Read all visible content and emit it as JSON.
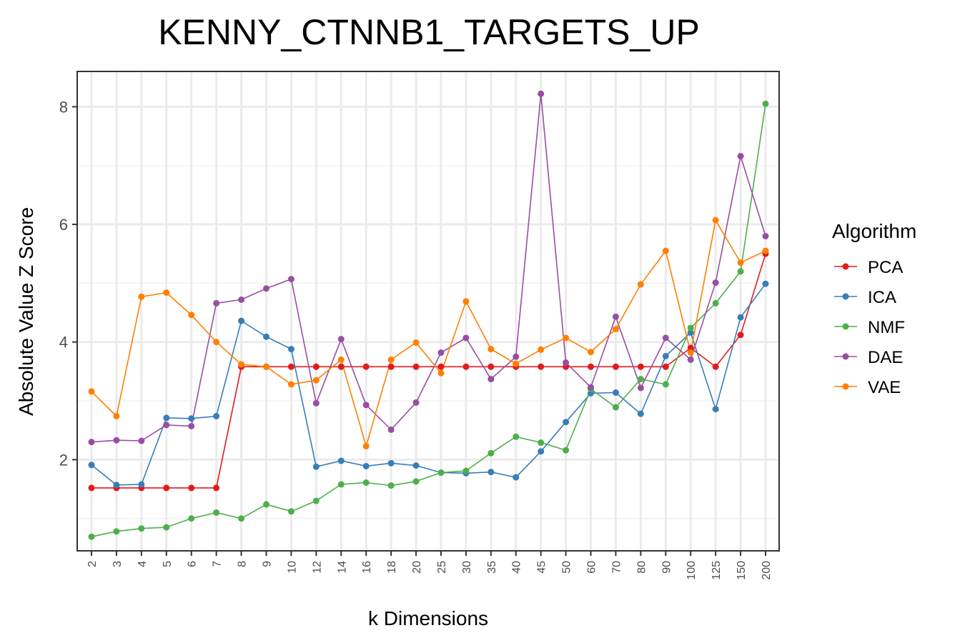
{
  "chart_data": {
    "type": "line",
    "title": "KENNY_CTNNB1_TARGETS_UP",
    "xlabel": "k Dimensions",
    "ylabel": "Absolute Value Z Score",
    "categories": [
      "2",
      "3",
      "4",
      "5",
      "6",
      "7",
      "8",
      "9",
      "10",
      "12",
      "14",
      "16",
      "18",
      "20",
      "25",
      "30",
      "35",
      "40",
      "45",
      "50",
      "60",
      "70",
      "80",
      "90",
      "100",
      "125",
      "150",
      "200"
    ],
    "ylim": [
      0.45,
      8.6
    ],
    "yticks": [
      2,
      4,
      6,
      8
    ],
    "grid": true,
    "legend": {
      "title": "Algorithm",
      "position": "right"
    },
    "series": [
      {
        "name": "PCA",
        "color": "#e41a1c",
        "values": [
          1.52,
          1.52,
          1.52,
          1.52,
          1.52,
          1.52,
          3.58,
          3.58,
          3.58,
          3.58,
          3.58,
          3.58,
          3.58,
          3.58,
          3.58,
          3.58,
          3.58,
          3.58,
          3.58,
          3.58,
          3.58,
          3.58,
          3.58,
          3.58,
          3.9,
          3.58,
          4.12,
          5.5
        ]
      },
      {
        "name": "ICA",
        "color": "#377eb8",
        "values": [
          1.91,
          1.57,
          1.58,
          2.71,
          2.7,
          2.74,
          4.36,
          4.09,
          3.88,
          1.88,
          1.98,
          1.89,
          1.94,
          1.9,
          1.78,
          1.77,
          1.79,
          1.7,
          2.14,
          2.64,
          3.13,
          3.14,
          2.78,
          3.76,
          4.16,
          2.86,
          4.42,
          4.99
        ]
      },
      {
        "name": "NMF",
        "color": "#4daf4a",
        "values": [
          0.69,
          0.78,
          0.83,
          0.85,
          1.0,
          1.1,
          1.0,
          1.24,
          1.12,
          1.3,
          1.58,
          1.61,
          1.56,
          1.63,
          1.78,
          1.81,
          2.11,
          2.39,
          2.29,
          2.16,
          3.2,
          2.89,
          3.37,
          3.28,
          4.24,
          4.66,
          5.2,
          8.05
        ]
      },
      {
        "name": "DAE",
        "color": "#984ea3",
        "values": [
          2.3,
          2.33,
          2.32,
          2.59,
          2.57,
          4.66,
          4.72,
          4.91,
          5.07,
          2.96,
          4.05,
          2.93,
          2.51,
          2.97,
          3.82,
          4.07,
          3.37,
          3.75,
          8.22,
          3.65,
          3.23,
          4.43,
          3.22,
          4.07,
          3.7,
          5.01,
          7.16,
          5.8
        ]
      },
      {
        "name": "VAE",
        "color": "#ff7f00",
        "values": [
          3.16,
          2.74,
          4.77,
          4.84,
          4.46,
          4.0,
          3.62,
          3.58,
          3.28,
          3.35,
          3.7,
          2.23,
          3.7,
          3.99,
          3.47,
          4.69,
          3.88,
          3.63,
          3.87,
          4.07,
          3.83,
          4.22,
          4.98,
          5.55,
          3.82,
          6.07,
          5.35,
          5.55
        ]
      }
    ]
  }
}
